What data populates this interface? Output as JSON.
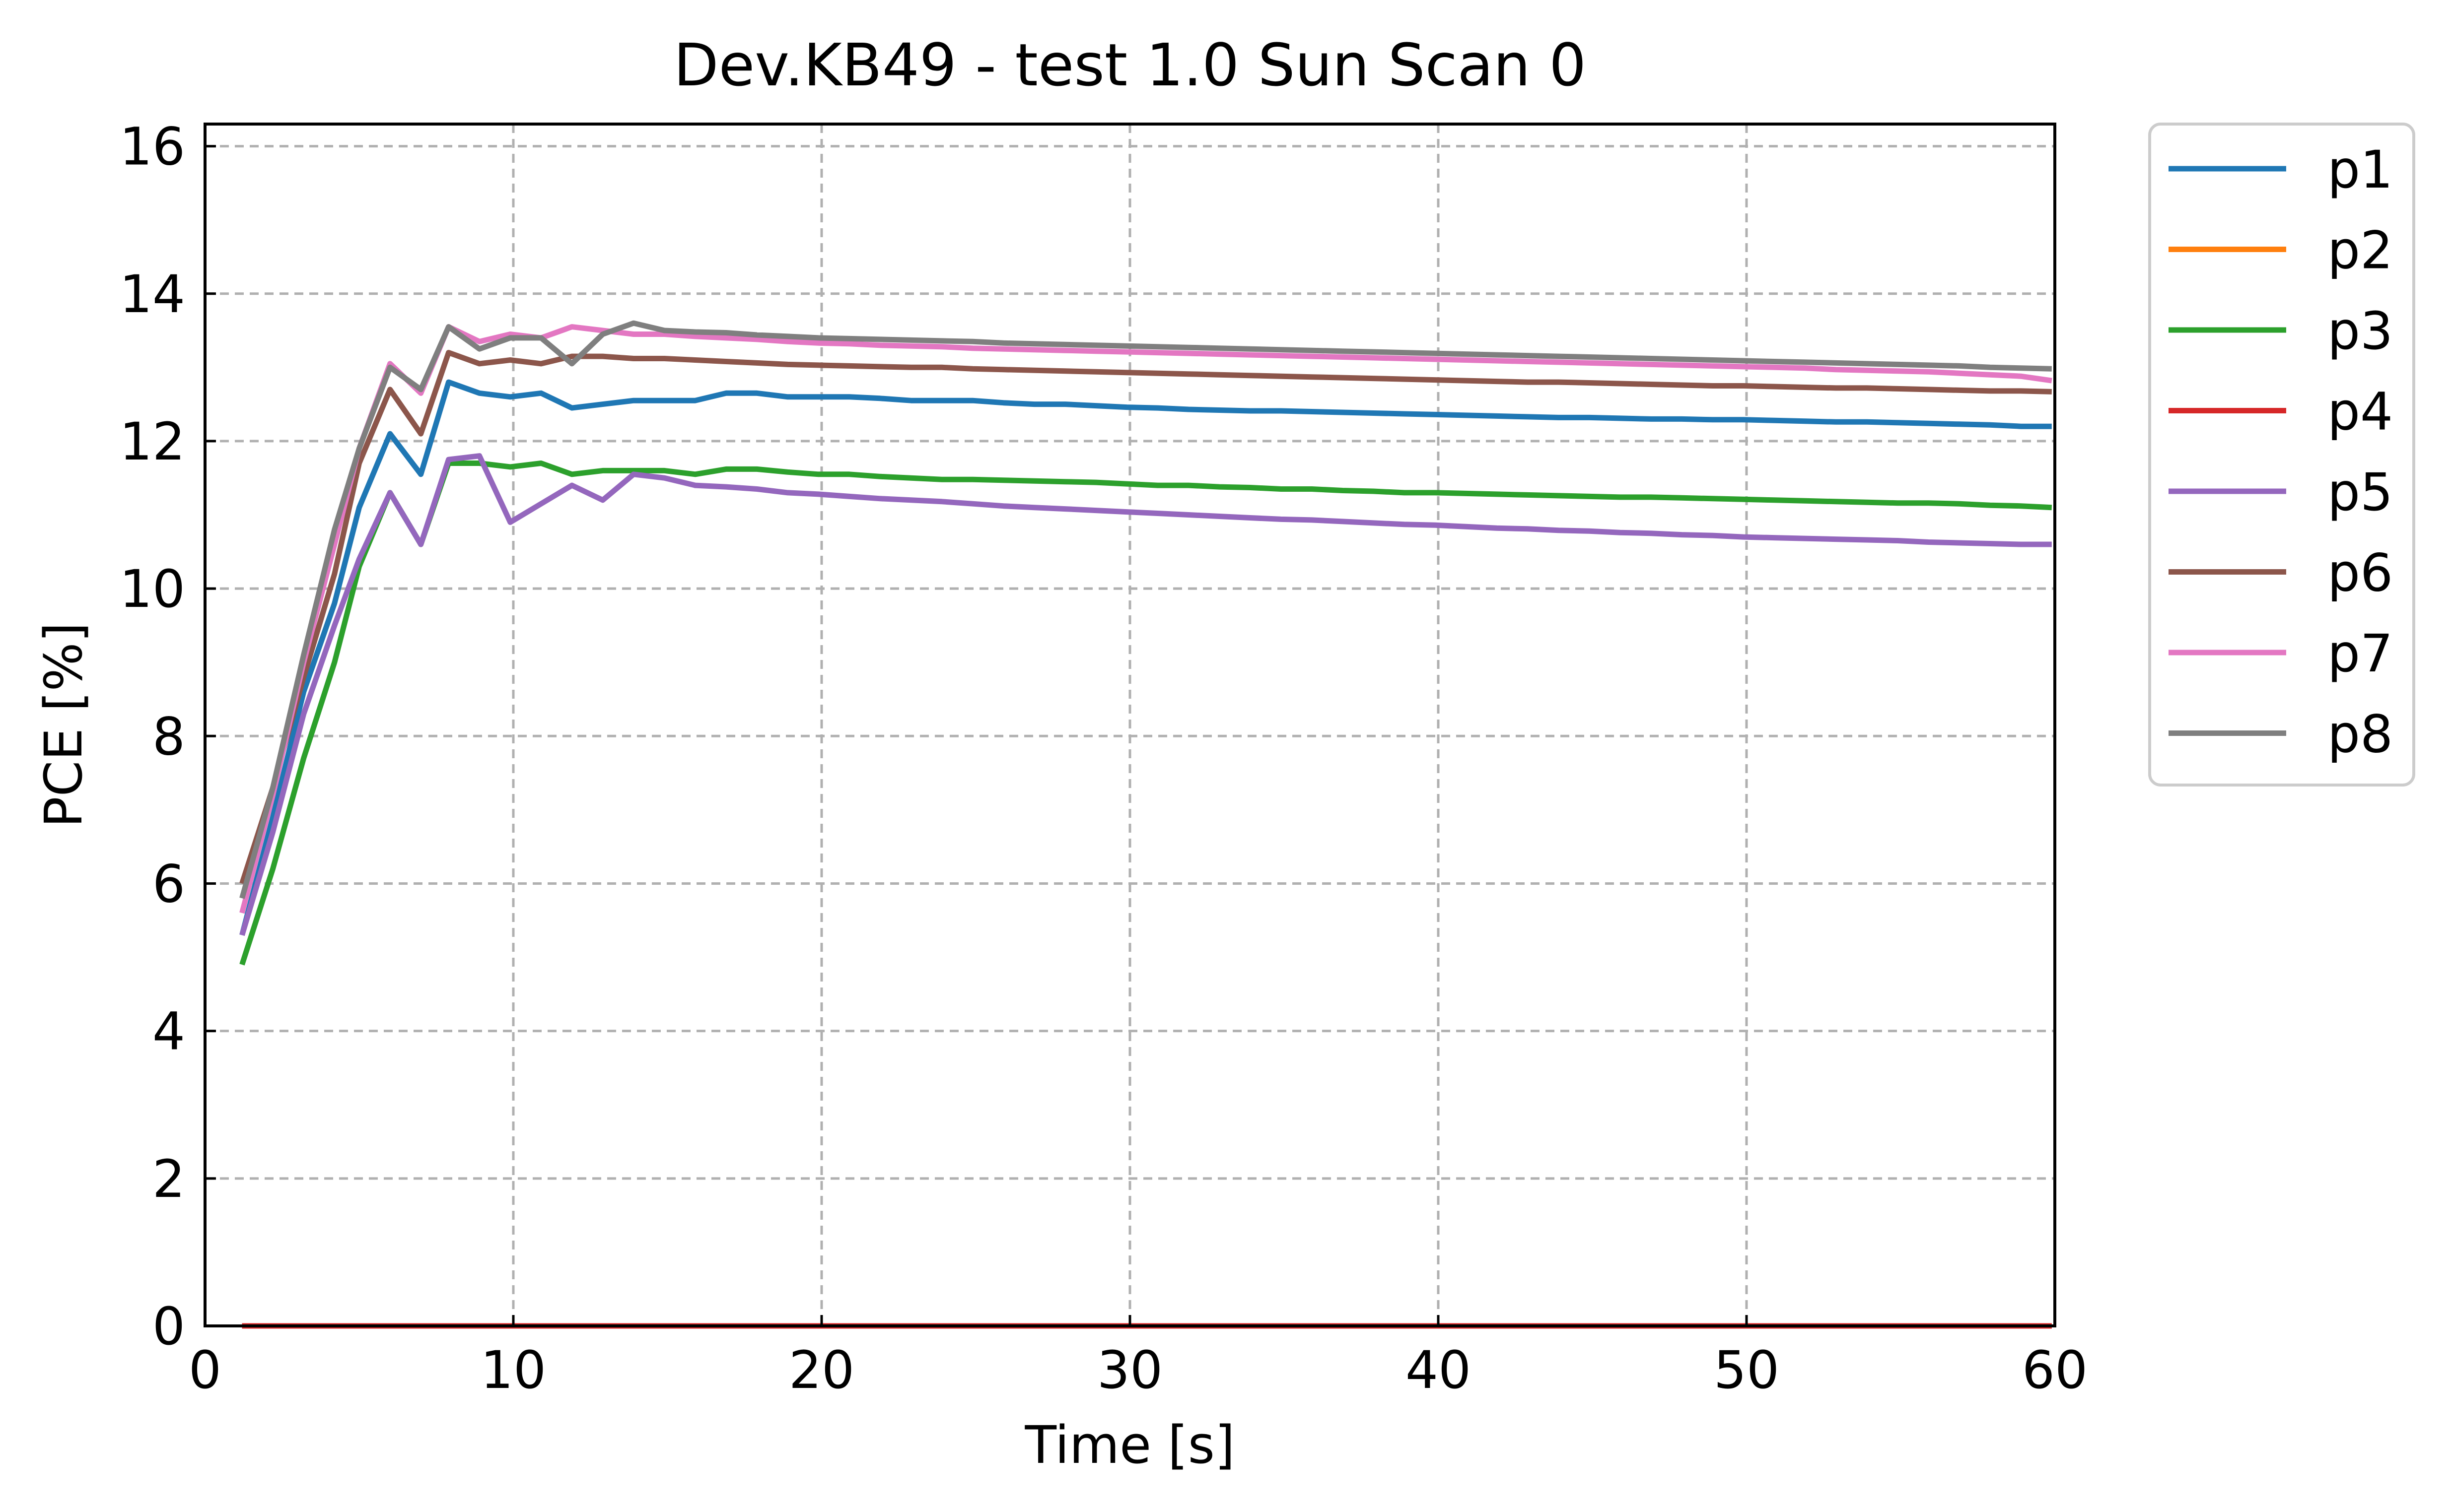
{
  "chart_data": {
    "type": "line",
    "title": "Dev.KB49 - test  1.0 Sun Scan 0",
    "xlabel": "Time [s]",
    "ylabel": "PCE [%]",
    "xlim": [
      0,
      60
    ],
    "ylim": [
      0,
      16.3
    ],
    "xticks": [
      0,
      10,
      20,
      30,
      40,
      50,
      60
    ],
    "yticks": [
      0,
      2,
      4,
      6,
      8,
      10,
      12,
      14,
      16
    ],
    "grid": true,
    "grid_style": "dashed",
    "legend_position": "outside-right-top",
    "x": [
      1.2,
      2.2,
      3.2,
      4.2,
      5.0,
      6.0,
      7.0,
      7.9,
      8.9,
      9.9,
      10.9,
      11.9,
      12.9,
      13.9,
      14.9,
      15.9,
      16.9,
      17.9,
      18.9,
      19.9,
      20.9,
      21.9,
      22.9,
      23.9,
      24.9,
      25.9,
      26.9,
      27.9,
      28.9,
      29.9,
      30.9,
      31.9,
      32.9,
      33.9,
      34.9,
      35.9,
      36.9,
      37.9,
      38.9,
      39.9,
      40.9,
      41.9,
      42.9,
      43.9,
      44.9,
      45.9,
      46.9,
      47.9,
      48.9,
      49.9,
      50.9,
      51.9,
      52.9,
      53.9,
      54.9,
      55.9,
      56.9,
      57.9,
      58.9,
      59.9
    ],
    "series": [
      {
        "name": "p1",
        "color": "#1f77b4",
        "values": [
          5.3,
          6.9,
          8.6,
          9.8,
          11.1,
          12.1,
          11.55,
          12.8,
          12.65,
          12.6,
          12.65,
          12.45,
          12.5,
          12.55,
          12.55,
          12.55,
          12.65,
          12.65,
          12.6,
          12.6,
          12.6,
          12.58,
          12.55,
          12.55,
          12.55,
          12.52,
          12.5,
          12.5,
          12.48,
          12.46,
          12.45,
          12.43,
          12.42,
          12.41,
          12.41,
          12.4,
          12.39,
          12.38,
          12.37,
          12.36,
          12.35,
          12.34,
          12.33,
          12.32,
          12.32,
          12.31,
          12.3,
          12.3,
          12.29,
          12.29,
          12.28,
          12.27,
          12.26,
          12.26,
          12.25,
          12.24,
          12.23,
          12.22,
          12.2,
          12.2
        ]
      },
      {
        "name": "p2",
        "color": "#ff7f0e",
        "values": [
          0.0,
          0.0,
          0.0,
          0.0,
          0.0,
          0.0,
          0.0,
          0.0,
          0.0,
          0.0,
          0.0,
          0.0,
          0.0,
          0.0,
          0.0,
          0.0,
          0.0,
          0.0,
          0.0,
          0.0,
          0.0,
          0.0,
          0.0,
          0.0,
          0.0,
          0.0,
          0.0,
          0.0,
          0.0,
          0.0,
          0.0,
          0.0,
          0.0,
          0.0,
          0.0,
          0.0,
          0.0,
          0.0,
          0.0,
          0.0,
          0.0,
          0.0,
          0.0,
          0.0,
          0.0,
          0.0,
          0.0,
          0.0,
          0.0,
          0.0,
          0.0,
          0.0,
          0.0,
          0.0,
          0.0,
          0.0,
          0.0,
          0.0,
          0.0,
          0.0
        ]
      },
      {
        "name": "p3",
        "color": "#2ca02c",
        "values": [
          4.9,
          6.2,
          7.7,
          9.0,
          10.3,
          11.3,
          10.6,
          11.7,
          11.7,
          11.65,
          11.7,
          11.55,
          11.6,
          11.6,
          11.6,
          11.55,
          11.62,
          11.62,
          11.58,
          11.55,
          11.55,
          11.52,
          11.5,
          11.48,
          11.48,
          11.47,
          11.46,
          11.45,
          11.44,
          11.42,
          11.4,
          11.4,
          11.38,
          11.37,
          11.35,
          11.35,
          11.33,
          11.32,
          11.3,
          11.3,
          11.29,
          11.28,
          11.27,
          11.26,
          11.25,
          11.24,
          11.24,
          11.23,
          11.22,
          11.21,
          11.2,
          11.19,
          11.18,
          11.17,
          11.16,
          11.16,
          11.15,
          11.13,
          11.12,
          11.1
        ]
      },
      {
        "name": "p4",
        "color": "#d62728",
        "values": [
          0.0,
          0.0,
          0.0,
          0.0,
          0.0,
          0.0,
          0.0,
          0.0,
          0.0,
          0.0,
          0.0,
          0.0,
          0.0,
          0.0,
          0.0,
          0.0,
          0.0,
          0.0,
          0.0,
          0.0,
          0.0,
          0.0,
          0.0,
          0.0,
          0.0,
          0.0,
          0.0,
          0.0,
          0.0,
          0.0,
          0.0,
          0.0,
          0.0,
          0.0,
          0.0,
          0.0,
          0.0,
          0.0,
          0.0,
          0.0,
          0.0,
          0.0,
          0.0,
          0.0,
          0.0,
          0.0,
          0.0,
          0.0,
          0.0,
          0.0,
          0.0,
          0.0,
          0.0,
          0.0,
          0.0,
          0.0,
          0.0,
          0.0,
          0.0,
          0.0
        ]
      },
      {
        "name": "p5",
        "color": "#9467bd",
        "values": [
          5.3,
          6.7,
          8.3,
          9.5,
          10.4,
          11.3,
          10.6,
          11.75,
          11.8,
          10.9,
          11.15,
          11.4,
          11.2,
          11.55,
          11.5,
          11.4,
          11.38,
          11.35,
          11.3,
          11.28,
          11.25,
          11.22,
          11.2,
          11.18,
          11.15,
          11.12,
          11.1,
          11.08,
          11.06,
          11.04,
          11.02,
          11.0,
          10.98,
          10.96,
          10.94,
          10.93,
          10.91,
          10.89,
          10.87,
          10.86,
          10.84,
          10.82,
          10.81,
          10.79,
          10.78,
          10.76,
          10.75,
          10.73,
          10.72,
          10.7,
          10.69,
          10.68,
          10.67,
          10.66,
          10.65,
          10.63,
          10.62,
          10.61,
          10.6,
          10.6
        ]
      },
      {
        "name": "p6",
        "color": "#8c564b",
        "values": [
          6.0,
          7.3,
          8.8,
          10.2,
          11.7,
          12.7,
          12.1,
          13.2,
          13.05,
          13.1,
          13.05,
          13.15,
          13.15,
          13.12,
          13.12,
          13.1,
          13.08,
          13.06,
          13.04,
          13.03,
          13.02,
          13.01,
          13.0,
          13.0,
          12.98,
          12.97,
          12.96,
          12.95,
          12.94,
          12.93,
          12.92,
          12.91,
          12.9,
          12.89,
          12.88,
          12.87,
          12.86,
          12.85,
          12.84,
          12.83,
          12.82,
          12.81,
          12.8,
          12.8,
          12.79,
          12.78,
          12.77,
          12.76,
          12.75,
          12.75,
          12.74,
          12.73,
          12.72,
          12.72,
          12.71,
          12.7,
          12.69,
          12.68,
          12.68,
          12.67
        ]
      },
      {
        "name": "p7",
        "color": "#e377c2",
        "values": [
          5.6,
          7.2,
          9.0,
          10.6,
          11.9,
          13.05,
          12.65,
          13.55,
          13.35,
          13.45,
          13.4,
          13.55,
          13.5,
          13.45,
          13.45,
          13.42,
          13.4,
          13.38,
          13.35,
          13.33,
          13.32,
          13.3,
          13.29,
          13.28,
          13.26,
          13.25,
          13.24,
          13.23,
          13.22,
          13.21,
          13.2,
          13.19,
          13.18,
          13.17,
          13.16,
          13.15,
          13.14,
          13.13,
          13.12,
          13.11,
          13.1,
          13.09,
          13.08,
          13.07,
          13.06,
          13.05,
          13.04,
          13.03,
          13.02,
          13.01,
          13.0,
          12.99,
          12.97,
          12.96,
          12.95,
          12.94,
          12.92,
          12.9,
          12.88,
          12.82
        ]
      },
      {
        "name": "p8",
        "color": "#7f7f7f",
        "values": [
          5.8,
          7.3,
          9.1,
          10.8,
          11.9,
          13.0,
          12.7,
          13.55,
          13.25,
          13.4,
          13.4,
          13.05,
          13.45,
          13.6,
          13.5,
          13.48,
          13.47,
          13.44,
          13.42,
          13.4,
          13.39,
          13.38,
          13.37,
          13.36,
          13.35,
          13.33,
          13.32,
          13.31,
          13.3,
          13.29,
          13.28,
          13.27,
          13.26,
          13.25,
          13.24,
          13.23,
          13.22,
          13.21,
          13.2,
          13.19,
          13.18,
          13.17,
          13.16,
          13.15,
          13.14,
          13.13,
          13.12,
          13.11,
          13.1,
          13.09,
          13.08,
          13.07,
          13.06,
          13.05,
          13.04,
          13.03,
          13.02,
          13.0,
          12.99,
          12.98
        ]
      }
    ]
  }
}
